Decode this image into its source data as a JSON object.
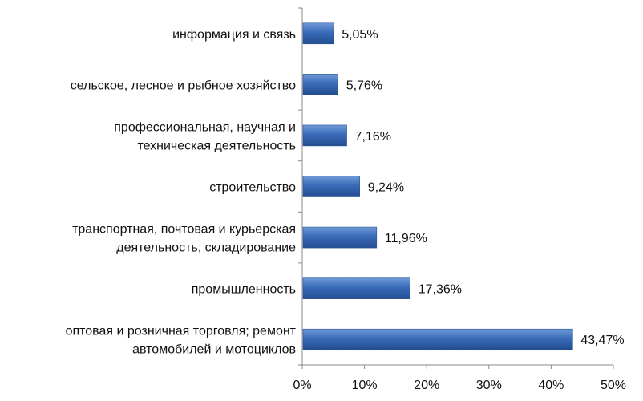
{
  "chart_data": {
    "type": "bar",
    "orientation": "horizontal",
    "categories": [
      [
        "информация и связь"
      ],
      [
        "сельское, лесное и рыбное хозяйство"
      ],
      [
        "профессиональная, научная и",
        "техническая деятельность"
      ],
      [
        "строительство"
      ],
      [
        "транспортная, почтовая и курьерская",
        "деятельность, складирование"
      ],
      [
        "промышленность"
      ],
      [
        "оптовая и розничная торговля; ремонт",
        "автомобилей и мотоциклов"
      ]
    ],
    "values": [
      5.05,
      5.76,
      7.16,
      9.24,
      11.96,
      17.36,
      43.47
    ],
    "value_labels": [
      "5,05%",
      "5,76%",
      "7,16%",
      "9,24%",
      "11,96%",
      "17,36%",
      "43,47%"
    ],
    "xlim": [
      0,
      50
    ],
    "xticks": [
      0,
      10,
      20,
      30,
      40,
      50
    ],
    "xtick_labels": [
      "0%",
      "10%",
      "20%",
      "30%",
      "40%",
      "50%"
    ],
    "grid": false,
    "legend": "none",
    "bar_color": "#3a6bb8"
  }
}
